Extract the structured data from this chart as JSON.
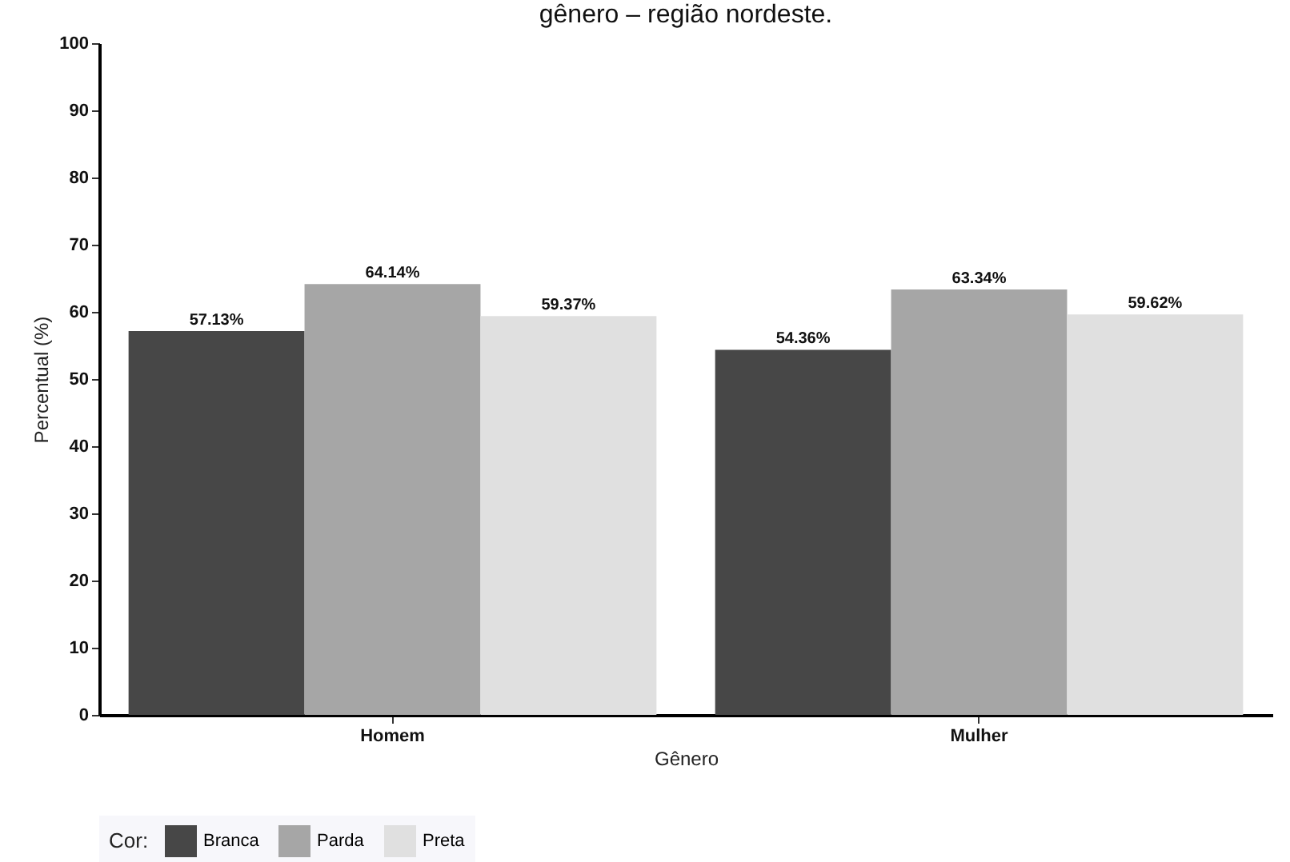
{
  "chart_data": {
    "type": "bar",
    "title": "gênero – região nordeste.",
    "xlabel": "Gênero",
    "ylabel": "Percentual (%)",
    "legend_title": "Cor:",
    "categories": [
      "Homem",
      "Mulher"
    ],
    "series": [
      {
        "name": "Branca",
        "color": "#474747",
        "values": [
          57.13,
          54.36
        ],
        "value_labels": [
          "57.13%",
          "54.36%"
        ]
      },
      {
        "name": "Parda",
        "color": "#a6a6a6",
        "values": [
          64.14,
          63.34
        ],
        "value_labels": [
          "64.14%",
          "63.34%"
        ]
      },
      {
        "name": "Preta",
        "color": "#e0e0e0",
        "values": [
          59.37,
          59.62
        ],
        "value_labels": [
          "59.37%",
          "59.62%"
        ]
      }
    ],
    "ylim": [
      0,
      100
    ],
    "yticks": [
      0,
      10,
      20,
      30,
      40,
      50,
      60,
      70,
      80,
      90,
      100
    ],
    "grid": false,
    "legend": "bottom"
  }
}
